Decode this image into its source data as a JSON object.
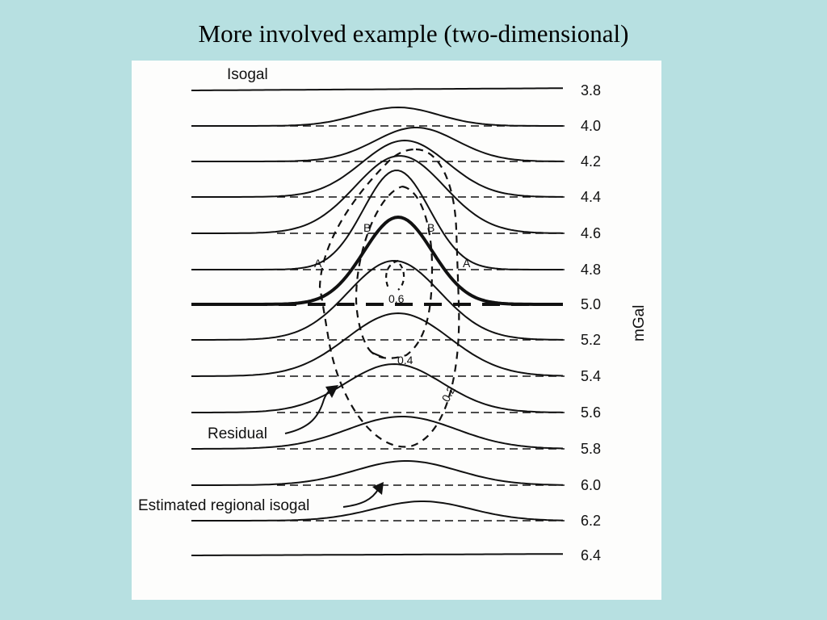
{
  "slide": {
    "title": "More involved example (two-dimensional)",
    "background_color": "#b7e0e1"
  },
  "figure": {
    "isogal_label": "Isogal",
    "unit_label": "mGal",
    "residual_label": "Residual",
    "regional_label": "Estimated regional isogal",
    "isogal_values": [
      "3.8",
      "4.0",
      "4.2",
      "4.4",
      "4.6",
      "4.8",
      "5.0",
      "5.2",
      "5.4",
      "5.6",
      "5.8",
      "6.0",
      "6.2",
      "6.4"
    ],
    "residual_contours": [
      {
        "value": "0.2"
      },
      {
        "value": "0.4"
      },
      {
        "value": "0.6"
      }
    ],
    "profile_markers": [
      "A",
      "A",
      "B",
      "B"
    ]
  }
}
